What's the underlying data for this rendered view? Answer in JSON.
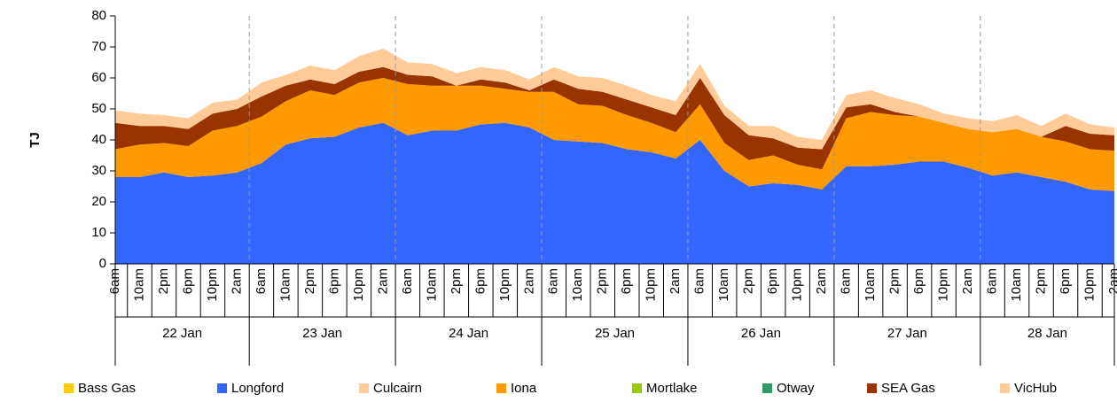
{
  "chart_data": {
    "type": "stacked_area",
    "y_label": "TJ",
    "categories": [
      "6am",
      "10am",
      "2pm",
      "6pm",
      "10pm",
      "2am",
      "6am",
      "10am",
      "2pm",
      "6pm",
      "10pm",
      "2am",
      "6am",
      "10am",
      "2pm",
      "6pm",
      "10pm",
      "2am",
      "6am",
      "10am",
      "2pm",
      "6pm",
      "10pm",
      "2am",
      "6am",
      "10am",
      "2pm",
      "6pm",
      "10pm",
      "2am",
      "6am",
      "10am",
      "2pm",
      "6pm",
      "10pm",
      "2am",
      "6am",
      "10am",
      "2pm",
      "6pm",
      "10pm",
      "2am"
    ],
    "day_groups": [
      "22 Jan",
      "23 Jan",
      "24 Jan",
      "25 Jan",
      "26 Jan",
      "27 Jan",
      "28 Jan"
    ],
    "ylim": [
      0,
      80
    ],
    "yticks": [
      0,
      10,
      20,
      30,
      40,
      50,
      60,
      70,
      80
    ],
    "series": [
      {
        "name": "Bass Gas",
        "color": "#ffcc00",
        "values": [
          0,
          0,
          0,
          0,
          0,
          0,
          0,
          0,
          0,
          0,
          0,
          0,
          0,
          0,
          0,
          0,
          0,
          0,
          0,
          0,
          0,
          0,
          0,
          0,
          0,
          0,
          0,
          0,
          0,
          0,
          0,
          0,
          0,
          0,
          0,
          0,
          0,
          0,
          0,
          0,
          0,
          0
        ]
      },
      {
        "name": "Longford",
        "color": "#3366ff",
        "values": [
          28,
          28,
          29.5,
          28,
          28.5,
          29.5,
          32.5,
          38.5,
          40.5,
          41,
          44,
          45.5,
          41.5,
          43,
          43,
          45,
          45.5,
          44,
          40,
          39.5,
          39,
          37,
          36,
          34,
          40,
          30,
          25,
          26,
          25.5,
          24,
          31.5,
          31.5,
          32,
          33,
          33,
          31,
          28.5,
          29.5,
          28,
          26.5,
          24,
          23.5
        ]
      },
      {
        "name": "Culcairn",
        "color": "#ffcc99",
        "values": [
          0,
          0,
          0,
          0,
          0,
          0,
          0,
          0,
          0,
          0,
          0,
          0,
          0,
          0,
          0,
          0,
          0,
          0,
          0,
          0,
          0,
          0,
          0,
          0,
          0,
          0,
          0,
          0,
          0,
          0,
          0,
          0,
          0,
          0,
          0,
          0,
          0,
          0,
          0,
          0,
          0,
          0
        ]
      },
      {
        "name": "Iona",
        "color": "#ff9900",
        "values": [
          9,
          10.5,
          9.5,
          10,
          14.5,
          15,
          15,
          14,
          15.5,
          13.5,
          14.5,
          14.5,
          16.5,
          14.5,
          14.5,
          12.5,
          11,
          11.5,
          15.5,
          12,
          12,
          11,
          9.5,
          8.5,
          11.5,
          9,
          8.5,
          9,
          6.5,
          6.5,
          15.5,
          17.5,
          16,
          14.5,
          12.5,
          12.5,
          14,
          14,
          13,
          13,
          13,
          13
        ]
      },
      {
        "name": "Mortlake",
        "color": "#99cc00",
        "values": [
          0,
          0,
          0,
          0,
          0,
          0,
          0,
          0,
          0,
          0,
          0,
          0,
          0,
          0,
          0,
          0,
          0,
          0,
          0,
          0,
          0,
          0,
          0,
          0,
          0,
          0,
          0,
          0,
          0,
          0,
          0,
          0,
          0,
          0,
          0,
          0,
          0,
          0,
          0,
          0,
          0,
          0
        ]
      },
      {
        "name": "Otway",
        "color": "#339966",
        "values": [
          0,
          0,
          0,
          0,
          0,
          0,
          0,
          0,
          0,
          0,
          0,
          0,
          0,
          0,
          0,
          0,
          0,
          0,
          0,
          0,
          0,
          0,
          0,
          0,
          0,
          0,
          0,
          0,
          0,
          0,
          0,
          0,
          0,
          0,
          0,
          0,
          0,
          0,
          0,
          0,
          0,
          0
        ]
      },
      {
        "name": "SEA Gas",
        "color": "#993300",
        "values": [
          8.5,
          6,
          5.5,
          5.5,
          5.5,
          5.5,
          6.5,
          5,
          3.5,
          3.5,
          3.5,
          3.5,
          3,
          3,
          0,
          2,
          2,
          0.5,
          4,
          5,
          4.5,
          5,
          5,
          5.5,
          8.5,
          9,
          8,
          5.5,
          5.5,
          6.5,
          3.5,
          2.5,
          1,
          0,
          0,
          0,
          0,
          0,
          0,
          5,
          5,
          5
        ]
      },
      {
        "name": "VicHub",
        "color": "#ffcc99",
        "values": [
          4,
          4,
          3.5,
          3.5,
          3.5,
          3,
          4.5,
          3.5,
          4.5,
          4.5,
          5,
          6,
          4,
          4,
          4,
          4,
          4,
          3.5,
          4,
          4,
          4.5,
          4.5,
          4,
          4.5,
          4.5,
          3,
          3,
          4,
          3.5,
          3,
          4,
          4.5,
          4.5,
          4,
          3,
          3.5,
          3.5,
          4.5,
          3.5,
          4,
          3,
          2.5
        ]
      }
    ]
  }
}
